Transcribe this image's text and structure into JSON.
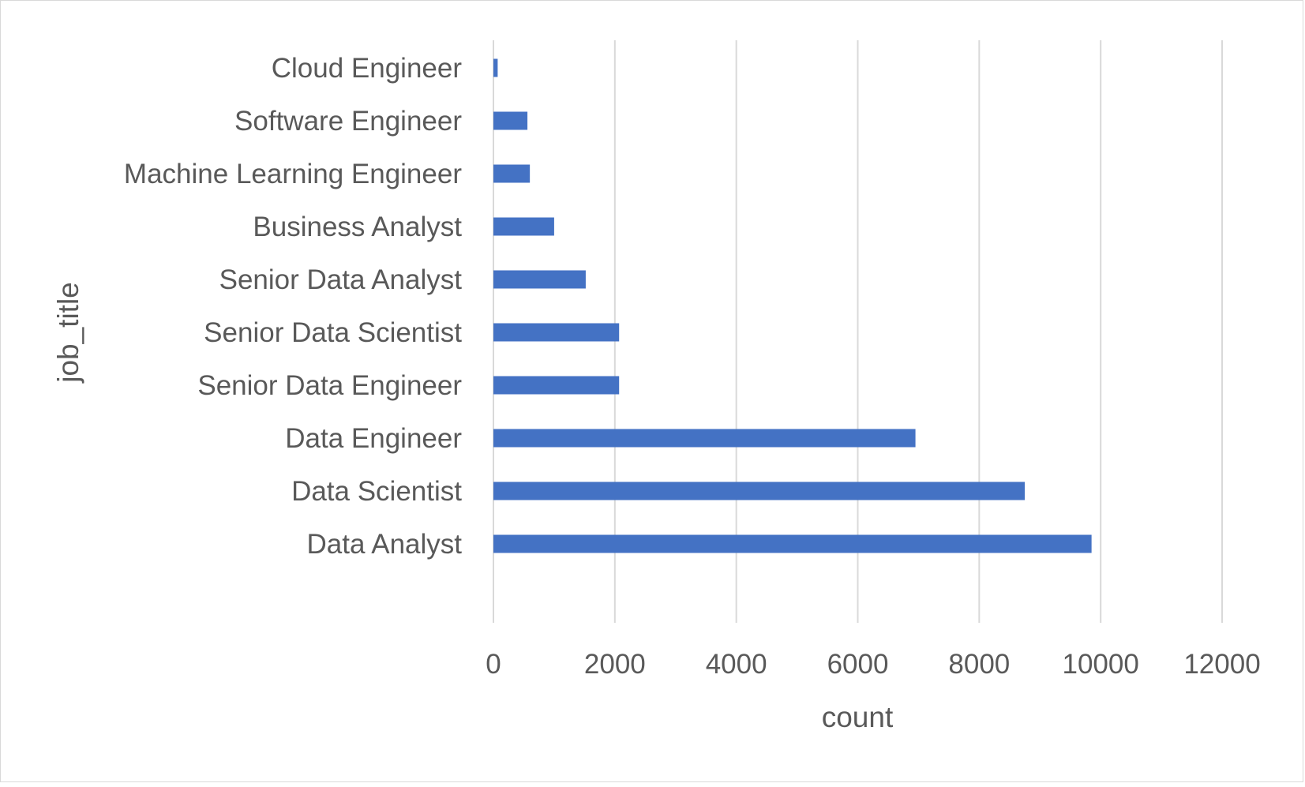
{
  "chart_data": {
    "type": "bar",
    "orientation": "horizontal",
    "categories": [
      "Cloud Engineer",
      "Software Engineer",
      "Machine Learning Engineer",
      "Business Analyst",
      "Senior Data Analyst",
      "Senior Data Scientist",
      "Senior Data Engineer",
      "Data Engineer",
      "Data Scientist",
      "Data Analyst"
    ],
    "values": [
      70,
      560,
      600,
      1000,
      1520,
      2070,
      2070,
      6950,
      8750,
      9850
    ],
    "xlabel": "count",
    "ylabel": "job_title",
    "xlim": [
      0,
      12000
    ],
    "xticks": [
      "0",
      "2000",
      "4000",
      "6000",
      "8000",
      "10000",
      "12000"
    ],
    "grid": "vertical",
    "legend": "none",
    "bar_color": "#4472c4",
    "grid_color": "#d9d9d9",
    "text_color": "#595959"
  }
}
